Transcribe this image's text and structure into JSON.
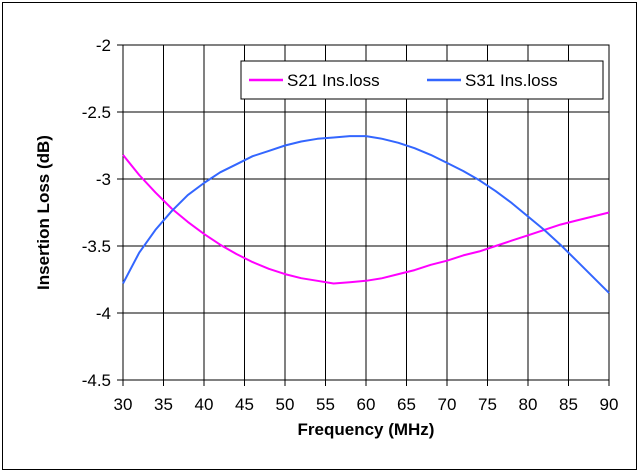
{
  "chart_data": {
    "type": "line",
    "title": "",
    "xlabel": "Frequency (MHz)",
    "ylabel": "Insertion Loss (dB)",
    "xlim": [
      30,
      90
    ],
    "ylim": [
      -4.5,
      -2
    ],
    "xticks": [
      30,
      35,
      40,
      45,
      50,
      55,
      60,
      65,
      70,
      75,
      80,
      85,
      90
    ],
    "yticks": [
      -2,
      -2.5,
      -3,
      -3.5,
      -4,
      -4.5
    ],
    "grid": true,
    "legend_position": "top-right",
    "series": [
      {
        "name": "S21 Ins.loss",
        "color": "#ff00ff",
        "x": [
          30,
          32,
          34,
          36,
          38,
          40,
          42,
          44,
          46,
          48,
          50,
          52,
          54,
          56,
          58,
          60,
          62,
          64,
          66,
          68,
          70,
          72,
          74,
          76,
          78,
          80,
          82,
          84,
          86,
          88,
          90
        ],
        "y": [
          -2.82,
          -2.97,
          -3.1,
          -3.22,
          -3.32,
          -3.41,
          -3.49,
          -3.56,
          -3.62,
          -3.67,
          -3.71,
          -3.74,
          -3.76,
          -3.78,
          -3.77,
          -3.76,
          -3.74,
          -3.71,
          -3.68,
          -3.64,
          -3.61,
          -3.57,
          -3.54,
          -3.5,
          -3.46,
          -3.42,
          -3.38,
          -3.34,
          -3.31,
          -3.28,
          -3.25
        ]
      },
      {
        "name": "S31 Ins.loss",
        "color": "#3366ff",
        "x": [
          30,
          32,
          34,
          36,
          38,
          40,
          42,
          44,
          46,
          48,
          50,
          52,
          54,
          56,
          58,
          60,
          62,
          64,
          66,
          68,
          70,
          72,
          74,
          76,
          78,
          80,
          82,
          84,
          86,
          88,
          90
        ],
        "y": [
          -3.78,
          -3.55,
          -3.38,
          -3.24,
          -3.12,
          -3.03,
          -2.95,
          -2.89,
          -2.83,
          -2.79,
          -2.75,
          -2.72,
          -2.7,
          -2.69,
          -2.68,
          -2.68,
          -2.7,
          -2.73,
          -2.77,
          -2.82,
          -2.88,
          -2.94,
          -3.01,
          -3.09,
          -3.18,
          -3.28,
          -3.38,
          -3.49,
          -3.61,
          -3.73,
          -3.85
        ]
      }
    ]
  }
}
